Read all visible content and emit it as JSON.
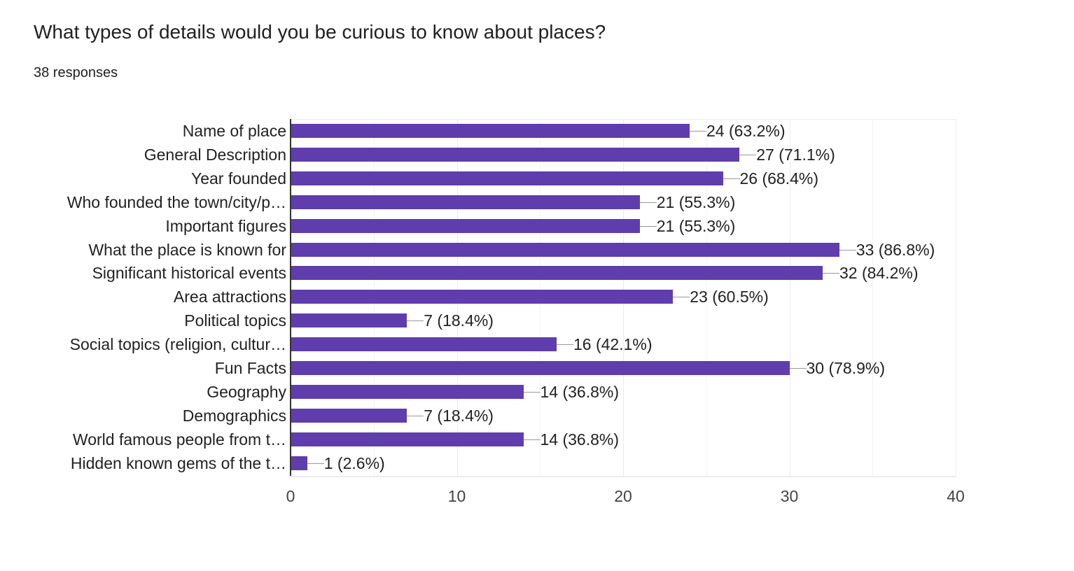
{
  "header": {
    "title": "What types of details would you be curious to know about places?",
    "responses": "38 responses"
  },
  "colors": {
    "bar": "#5f3dac",
    "grid": "#ebebeb",
    "axis": "#333333"
  },
  "chart_data": {
    "type": "bar",
    "orientation": "horizontal",
    "title": "What types of details would you be curious to know about places?",
    "subtitle": "38 responses",
    "xlabel": "",
    "ylabel": "",
    "xlim": [
      0,
      40
    ],
    "x_ticks": [
      "0",
      "10",
      "20",
      "30",
      "40"
    ],
    "grid": true,
    "legend": "none",
    "categories": [
      "Name of place",
      "General Description",
      "Year founded",
      "Who founded the town/city/p…",
      "Important figures",
      "What the place is known for",
      "Significant historical events",
      "Area attractions",
      "Political topics",
      "Social topics (religion, cultur…",
      "Fun Facts",
      "Geography",
      "Demographics",
      "World famous people from t…",
      "Hidden known gems of the t…"
    ],
    "values": [
      24,
      27,
      26,
      21,
      21,
      33,
      32,
      23,
      7,
      16,
      30,
      14,
      7,
      14,
      1
    ],
    "value_labels": [
      "24 (63.2%)",
      "27 (71.1%)",
      "26 (68.4%)",
      "21 (55.3%)",
      "21 (55.3%)",
      "33 (86.8%)",
      "32 (84.2%)",
      "23 (60.5%)",
      "7 (18.4%)",
      "16 (42.1%)",
      "30 (78.9%)",
      "14 (36.8%)",
      "7 (18.4%)",
      "14 (36.8%)",
      "1 (2.6%)"
    ]
  }
}
